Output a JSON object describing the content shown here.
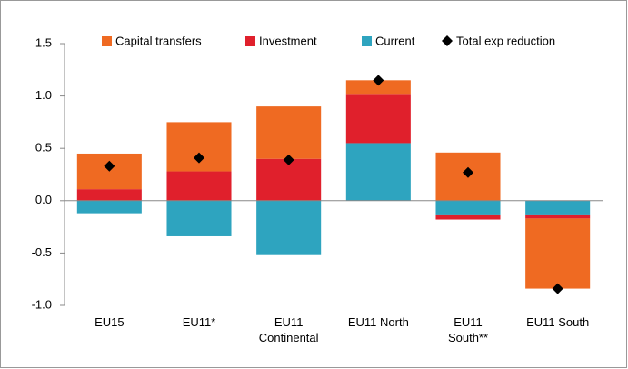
{
  "chart_data": {
    "type": "bar",
    "stacked": true,
    "categories": [
      "EU15",
      "EU11*",
      "EU11\nContinental",
      "EU11 North",
      "EU11\nSouth**",
      "EU11 South"
    ],
    "series": [
      {
        "name": "Capital transfers",
        "color": "#ef6a22",
        "values": [
          0.34,
          0.47,
          0.5,
          0.13,
          0.46,
          -0.67
        ]
      },
      {
        "name": "Investment",
        "color": "#e0202c",
        "values": [
          0.11,
          0.28,
          0.4,
          0.47,
          -0.04,
          -0.03
        ]
      },
      {
        "name": "Current",
        "color": "#2ea4bf",
        "values": [
          -0.12,
          -0.34,
          -0.52,
          0.55,
          -0.14,
          -0.14
        ]
      },
      {
        "name": "Total exp reduction",
        "type": "scatter",
        "color": "#000000",
        "values": [
          0.33,
          0.41,
          0.39,
          1.15,
          0.27,
          -0.84
        ]
      }
    ],
    "ylim": [
      -1.0,
      1.5
    ],
    "yticks": [
      {
        "value": -1,
        "label": "-1.0"
      },
      -0.5,
      {
        "value": 0,
        "label": "0.0"
      },
      0.5,
      {
        "value": 1,
        "label": "1.0"
      },
      1.5
    ],
    "grid": false,
    "legend": "top"
  }
}
